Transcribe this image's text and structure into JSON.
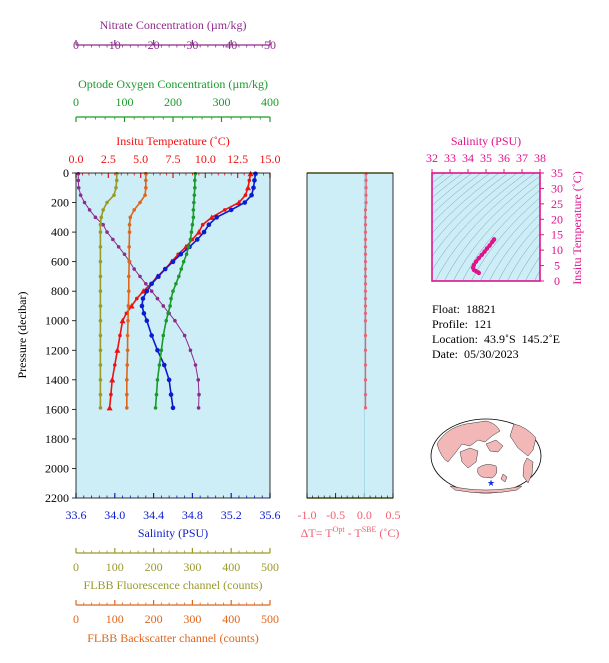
{
  "info": {
    "float": "Float:  18821",
    "profile": "Profile:  121",
    "location": "Location:  43.9˚S  145.2˚E",
    "date": "Date:  05/30/2023"
  },
  "colors": {
    "nitrate": "#8e2c8c",
    "oxygen": "#1a9a2a",
    "temperature": "#ee1111",
    "salinity": "#0b1bd0",
    "fluorescence": "#9a9a2a",
    "backscatter": "#e0661c",
    "deltaT": "#f06070",
    "ts": "#e0138c",
    "panel_bg": "#cdeef6",
    "map_land": "#f2b8b8"
  },
  "chart_data": [
    {
      "type": "line",
      "panel": "main-profile",
      "y_axis": {
        "label": "Pressure (decibar)",
        "range": [
          0,
          2200
        ],
        "inverted": true,
        "ticks": [
          "0",
          "200",
          "400",
          "600",
          "800",
          "1000",
          "1200",
          "1400",
          "1600",
          "1800",
          "2000",
          "2200"
        ]
      },
      "axes": {
        "nitrate": {
          "label": "Nitrate Concentration (µm/kg)",
          "range": [
            0,
            50
          ],
          "ticks": [
            "0",
            "10",
            "20",
            "30",
            "40",
            "50"
          ],
          "position": "top"
        },
        "oxygen": {
          "label": "Optode Oxygen Concentration (µm/kg)",
          "range": [
            0,
            400
          ],
          "ticks": [
            "0",
            "100",
            "200",
            "300",
            "400"
          ],
          "position": "top"
        },
        "temperature": {
          "label": "Insitu Temperature (˚C)",
          "range": [
            0,
            15
          ],
          "ticks": [
            "0.0",
            "2.5",
            "5.0",
            "7.5",
            "10.0",
            "12.5",
            "15.0"
          ],
          "position": "top"
        },
        "salinity": {
          "label": "Salinity (PSU)",
          "range": [
            33.6,
            35.6
          ],
          "ticks": [
            "33.6",
            "34.0",
            "34.4",
            "34.8",
            "35.2",
            "35.6"
          ],
          "position": "bottom"
        },
        "fluorescence": {
          "label": "FLBB Fluorescence channel (counts)",
          "range": [
            0,
            500
          ],
          "ticks": [
            "0",
            "100",
            "200",
            "300",
            "400",
            "500"
          ],
          "position": "bottom"
        },
        "backscatter": {
          "label": "FLBB Backscatter channel (counts)",
          "range": [
            0,
            500
          ],
          "ticks": [
            "0",
            "100",
            "200",
            "300",
            "400",
            "500"
          ],
          "position": "bottom"
        }
      },
      "series": [
        {
          "key": "temperature",
          "points": [
            [
              13.5,
              5
            ],
            [
              13.4,
              50
            ],
            [
              13.3,
              100
            ],
            [
              13.1,
              150
            ],
            [
              12.6,
              200
            ],
            [
              11.5,
              250
            ],
            [
              10.5,
              300
            ],
            [
              9.8,
              350
            ],
            [
              9.5,
              400
            ],
            [
              9.0,
              450
            ],
            [
              8.5,
              500
            ],
            [
              7.9,
              550
            ],
            [
              7.4,
              600
            ],
            [
              6.9,
              650
            ],
            [
              6.3,
              700
            ],
            [
              5.8,
              750
            ],
            [
              5.2,
              800
            ],
            [
              4.7,
              850
            ],
            [
              4.3,
              900
            ],
            [
              3.9,
              950
            ],
            [
              3.6,
              1000
            ],
            [
              3.4,
              1100
            ],
            [
              3.2,
              1200
            ],
            [
              3.0,
              1300
            ],
            [
              2.8,
              1400
            ],
            [
              2.7,
              1500
            ],
            [
              2.6,
              1590
            ]
          ]
        },
        {
          "key": "salinity",
          "points": [
            [
              35.45,
              5
            ],
            [
              35.44,
              50
            ],
            [
              35.43,
              100
            ],
            [
              35.41,
              150
            ],
            [
              35.34,
              200
            ],
            [
              35.2,
              250
            ],
            [
              35.05,
              300
            ],
            [
              34.97,
              350
            ],
            [
              34.92,
              400
            ],
            [
              34.85,
              450
            ],
            [
              34.77,
              500
            ],
            [
              34.68,
              550
            ],
            [
              34.6,
              600
            ],
            [
              34.52,
              650
            ],
            [
              34.45,
              700
            ],
            [
              34.38,
              750
            ],
            [
              34.33,
              800
            ],
            [
              34.29,
              850
            ],
            [
              34.28,
              900
            ],
            [
              34.3,
              950
            ],
            [
              34.33,
              1000
            ],
            [
              34.38,
              1100
            ],
            [
              34.44,
              1200
            ],
            [
              34.51,
              1300
            ],
            [
              34.56,
              1400
            ],
            [
              34.58,
              1500
            ],
            [
              34.6,
              1590
            ]
          ]
        },
        {
          "key": "nitrate",
          "points": [
            [
              0.6,
              5
            ],
            [
              0.6,
              50
            ],
            [
              0.7,
              100
            ],
            [
              1.2,
              150
            ],
            [
              2.2,
              200
            ],
            [
              3.5,
              250
            ],
            [
              5.0,
              300
            ],
            [
              7.0,
              350
            ],
            [
              8.0,
              400
            ],
            [
              9.5,
              450
            ],
            [
              11.0,
              500
            ],
            [
              12.5,
              550
            ],
            [
              13.8,
              600
            ],
            [
              15.0,
              650
            ],
            [
              16.5,
              700
            ],
            [
              18.0,
              750
            ],
            [
              19.5,
              800
            ],
            [
              21.0,
              850
            ],
            [
              22.5,
              900
            ],
            [
              24.0,
              950
            ],
            [
              25.5,
              1000
            ],
            [
              28.0,
              1100
            ],
            [
              29.5,
              1200
            ],
            [
              30.8,
              1300
            ],
            [
              31.5,
              1400
            ],
            [
              31.7,
              1500
            ],
            [
              31.6,
              1590
            ]
          ]
        },
        {
          "key": "oxygen",
          "points": [
            [
              246,
              5
            ],
            [
              245,
              50
            ],
            [
              245,
              100
            ],
            [
              244,
              150
            ],
            [
              243,
              200
            ],
            [
              242,
              250
            ],
            [
              242,
              300
            ],
            [
              240,
              350
            ],
            [
              238,
              400
            ],
            [
              236,
              450
            ],
            [
              232,
              500
            ],
            [
              228,
              550
            ],
            [
              222,
              600
            ],
            [
              217,
              650
            ],
            [
              212,
              700
            ],
            [
              206,
              750
            ],
            [
              200,
              800
            ],
            [
              196,
              850
            ],
            [
              194,
              900
            ],
            [
              190,
              950
            ],
            [
              186,
              1000
            ],
            [
              180,
              1100
            ],
            [
              176,
              1200
            ],
            [
              172,
              1300
            ],
            [
              168,
              1400
            ],
            [
              166,
              1500
            ],
            [
              164,
              1590
            ]
          ]
        },
        {
          "key": "fluorescence",
          "points": [
            [
              105,
              5
            ],
            [
              105,
              50
            ],
            [
              103,
              100
            ],
            [
              98,
              150
            ],
            [
              80,
              200
            ],
            [
              70,
              250
            ],
            [
              65,
              300
            ],
            [
              63,
              350
            ],
            [
              63,
              400
            ],
            [
              63,
              500
            ],
            [
              63,
              600
            ],
            [
              63,
              700
            ],
            [
              63,
              800
            ],
            [
              63,
              900
            ],
            [
              63,
              1000
            ],
            [
              63,
              1100
            ],
            [
              63,
              1200
            ],
            [
              63,
              1300
            ],
            [
              63,
              1400
            ],
            [
              63,
              1500
            ],
            [
              63,
              1590
            ]
          ]
        },
        {
          "key": "backscatter",
          "points": [
            [
              180,
              5
            ],
            [
              180,
              50
            ],
            [
              180,
              100
            ],
            [
              178,
              150
            ],
            [
              165,
              200
            ],
            [
              150,
              250
            ],
            [
              140,
              300
            ],
            [
              138,
              350
            ],
            [
              138,
              400
            ],
            [
              137,
              500
            ],
            [
              137,
              600
            ],
            [
              136,
              700
            ],
            [
              136,
              800
            ],
            [
              135,
              900
            ],
            [
              134,
              1000
            ],
            [
              133,
              1100
            ],
            [
              133,
              1200
            ],
            [
              132,
              1300
            ],
            [
              131,
              1400
            ],
            [
              131,
              1500
            ],
            [
              131,
              1590
            ]
          ]
        }
      ]
    },
    {
      "type": "line",
      "panel": "delta-t",
      "x_axis": {
        "label_parts": [
          "ΔT= T",
          "Opt",
          " - T",
          "SBE",
          " (˚C)"
        ],
        "range": [
          -1.0,
          0.5
        ],
        "ticks": [
          "-1.0",
          "-0.5",
          "0.0",
          "0.5"
        ]
      },
      "y_axis": {
        "range": [
          0,
          2200
        ],
        "inverted": true
      },
      "series": [
        {
          "key": "deltaT",
          "points": [
            [
              0.03,
              5
            ],
            [
              0.03,
              50
            ],
            [
              0.03,
              100
            ],
            [
              0.03,
              150
            ],
            [
              0.03,
              200
            ],
            [
              0.02,
              250
            ],
            [
              0.02,
              300
            ],
            [
              0.02,
              350
            ],
            [
              0.02,
              400
            ],
            [
              0.02,
              450
            ],
            [
              0.02,
              500
            ],
            [
              0.02,
              550
            ],
            [
              0.02,
              600
            ],
            [
              0.02,
              650
            ],
            [
              0.02,
              700
            ],
            [
              0.02,
              750
            ],
            [
              0.02,
              800
            ],
            [
              0.02,
              850
            ],
            [
              0.02,
              900
            ],
            [
              0.02,
              950
            ],
            [
              0.02,
              1000
            ],
            [
              0.02,
              1100
            ],
            [
              0.02,
              1200
            ],
            [
              0.02,
              1300
            ],
            [
              0.02,
              1400
            ],
            [
              0.02,
              1500
            ],
            [
              0.02,
              1590
            ]
          ]
        }
      ]
    },
    {
      "type": "scatter",
      "panel": "ts-diagram",
      "x_axis": {
        "label": "Salinity (PSU)",
        "range": [
          32,
          38
        ],
        "ticks": [
          "32",
          "33",
          "34",
          "35",
          "36",
          "37",
          "38"
        ]
      },
      "y_axis": {
        "label": "Insitu Temperature (˚C)",
        "range": [
          0,
          35
        ],
        "ticks": [
          "0",
          "5",
          "10",
          "15",
          "20",
          "25",
          "30",
          "35"
        ]
      },
      "series": [
        {
          "key": "ts",
          "points": [
            [
              35.45,
              13.5
            ],
            [
              35.43,
              13.3
            ],
            [
              35.34,
              12.6
            ],
            [
              35.2,
              11.5
            ],
            [
              35.05,
              10.5
            ],
            [
              34.92,
              9.5
            ],
            [
              34.77,
              8.5
            ],
            [
              34.6,
              7.4
            ],
            [
              34.45,
              6.3
            ],
            [
              34.33,
              5.2
            ],
            [
              34.28,
              4.3
            ],
            [
              34.33,
              3.6
            ],
            [
              34.44,
              3.2
            ],
            [
              34.56,
              2.8
            ],
            [
              34.6,
              2.6
            ]
          ]
        }
      ]
    }
  ]
}
